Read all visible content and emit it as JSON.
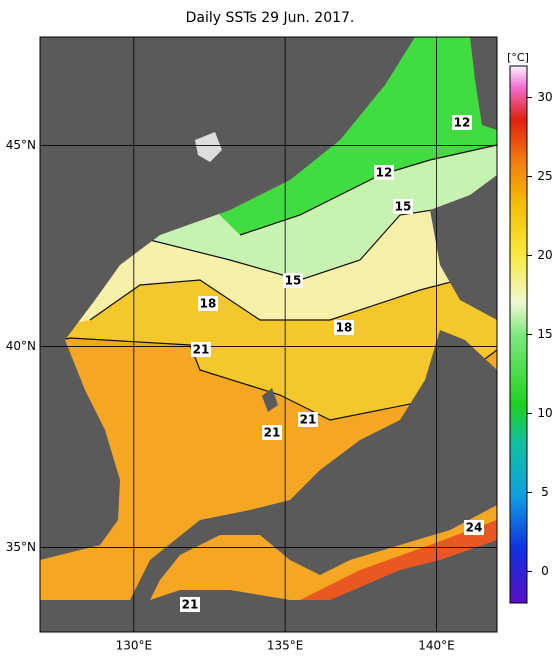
{
  "map": {
    "title": "Daily SSTs 29 Jun. 2017.",
    "lon_lim": [
      126.9,
      142.0
    ],
    "lat_lim": [
      32.9,
      47.7
    ],
    "lon_ticks": [
      {
        "value": 130,
        "label": "130°E"
      },
      {
        "value": 135,
        "label": "135°E"
      },
      {
        "value": 140,
        "label": "140°E"
      }
    ],
    "lat_ticks": [
      {
        "value": 45,
        "label": "45°N"
      },
      {
        "value": 40,
        "label": "40°N"
      },
      {
        "value": 35,
        "label": "35°N"
      }
    ],
    "colorbar": {
      "unit": "[°C]",
      "lim": [
        -2,
        32
      ],
      "ticks": [
        0,
        5,
        10,
        15,
        20,
        25,
        30
      ]
    },
    "contour_labels": [
      12,
      12,
      15,
      15,
      18,
      18,
      21,
      21,
      21,
      24,
      21
    ]
  }
}
